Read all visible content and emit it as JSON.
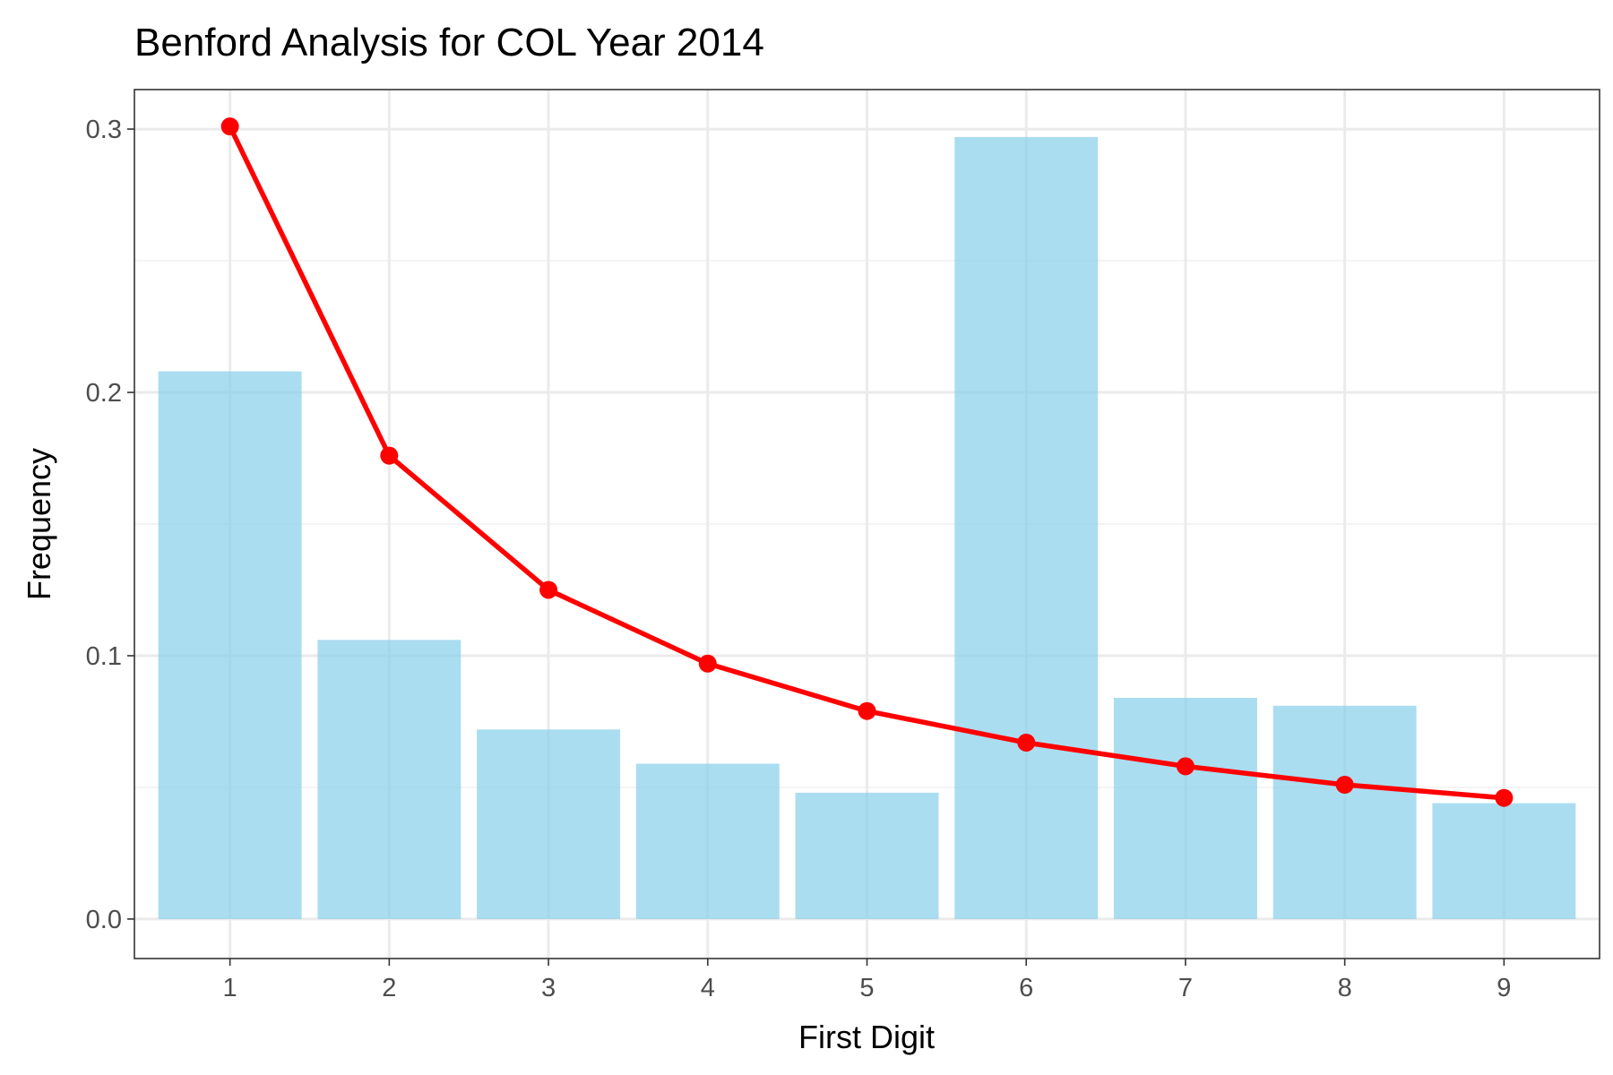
{
  "chart_data": {
    "type": "bar",
    "title": "Benford Analysis for COL Year 2014",
    "xlabel": "First Digit",
    "ylabel": "Frequency",
    "categories": [
      "1",
      "2",
      "3",
      "4",
      "5",
      "6",
      "7",
      "8",
      "9"
    ],
    "x_tick_labels": [
      "1",
      "2",
      "3",
      "4",
      "5",
      "6",
      "7",
      "8",
      "9"
    ],
    "y_tick_labels": [
      "0.0",
      "0.1",
      "0.2",
      "0.3"
    ],
    "y_ticks": [
      0.0,
      0.1,
      0.2,
      0.3
    ],
    "ylim": [
      -0.015,
      0.315
    ],
    "grid": true,
    "legend": "none",
    "series": [
      {
        "type": "bar",
        "values": [
          0.208,
          0.106,
          0.072,
          0.059,
          0.048,
          0.297,
          0.084,
          0.081,
          0.044
        ],
        "color": "#87CEEB"
      },
      {
        "type": "line",
        "values": [
          0.301,
          0.176,
          0.125,
          0.097,
          0.079,
          0.067,
          0.058,
          0.051,
          0.046
        ],
        "color": "#FF0000"
      }
    ]
  }
}
